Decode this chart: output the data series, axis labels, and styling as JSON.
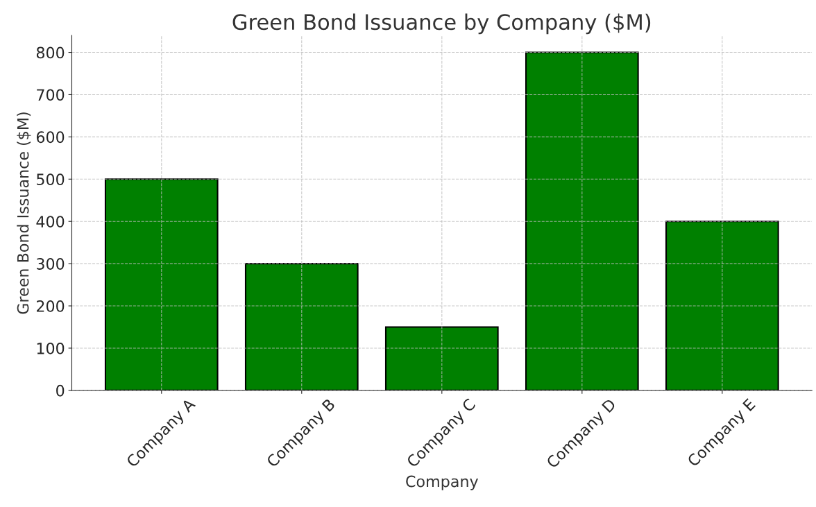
{
  "chart_data": {
    "type": "bar",
    "title": "Green Bond Issuance by Company ($M)",
    "xlabel": "Company",
    "ylabel": "Green Bond Issuance ($M)",
    "categories": [
      "Company A",
      "Company B",
      "Company C",
      "Company D",
      "Company E"
    ],
    "values": [
      500,
      300,
      150,
      800,
      400
    ],
    "color": "#008000",
    "ylim": [
      0,
      840
    ],
    "yticks": [
      0,
      100,
      200,
      300,
      400,
      500,
      600,
      700,
      800
    ],
    "grid": true
  }
}
